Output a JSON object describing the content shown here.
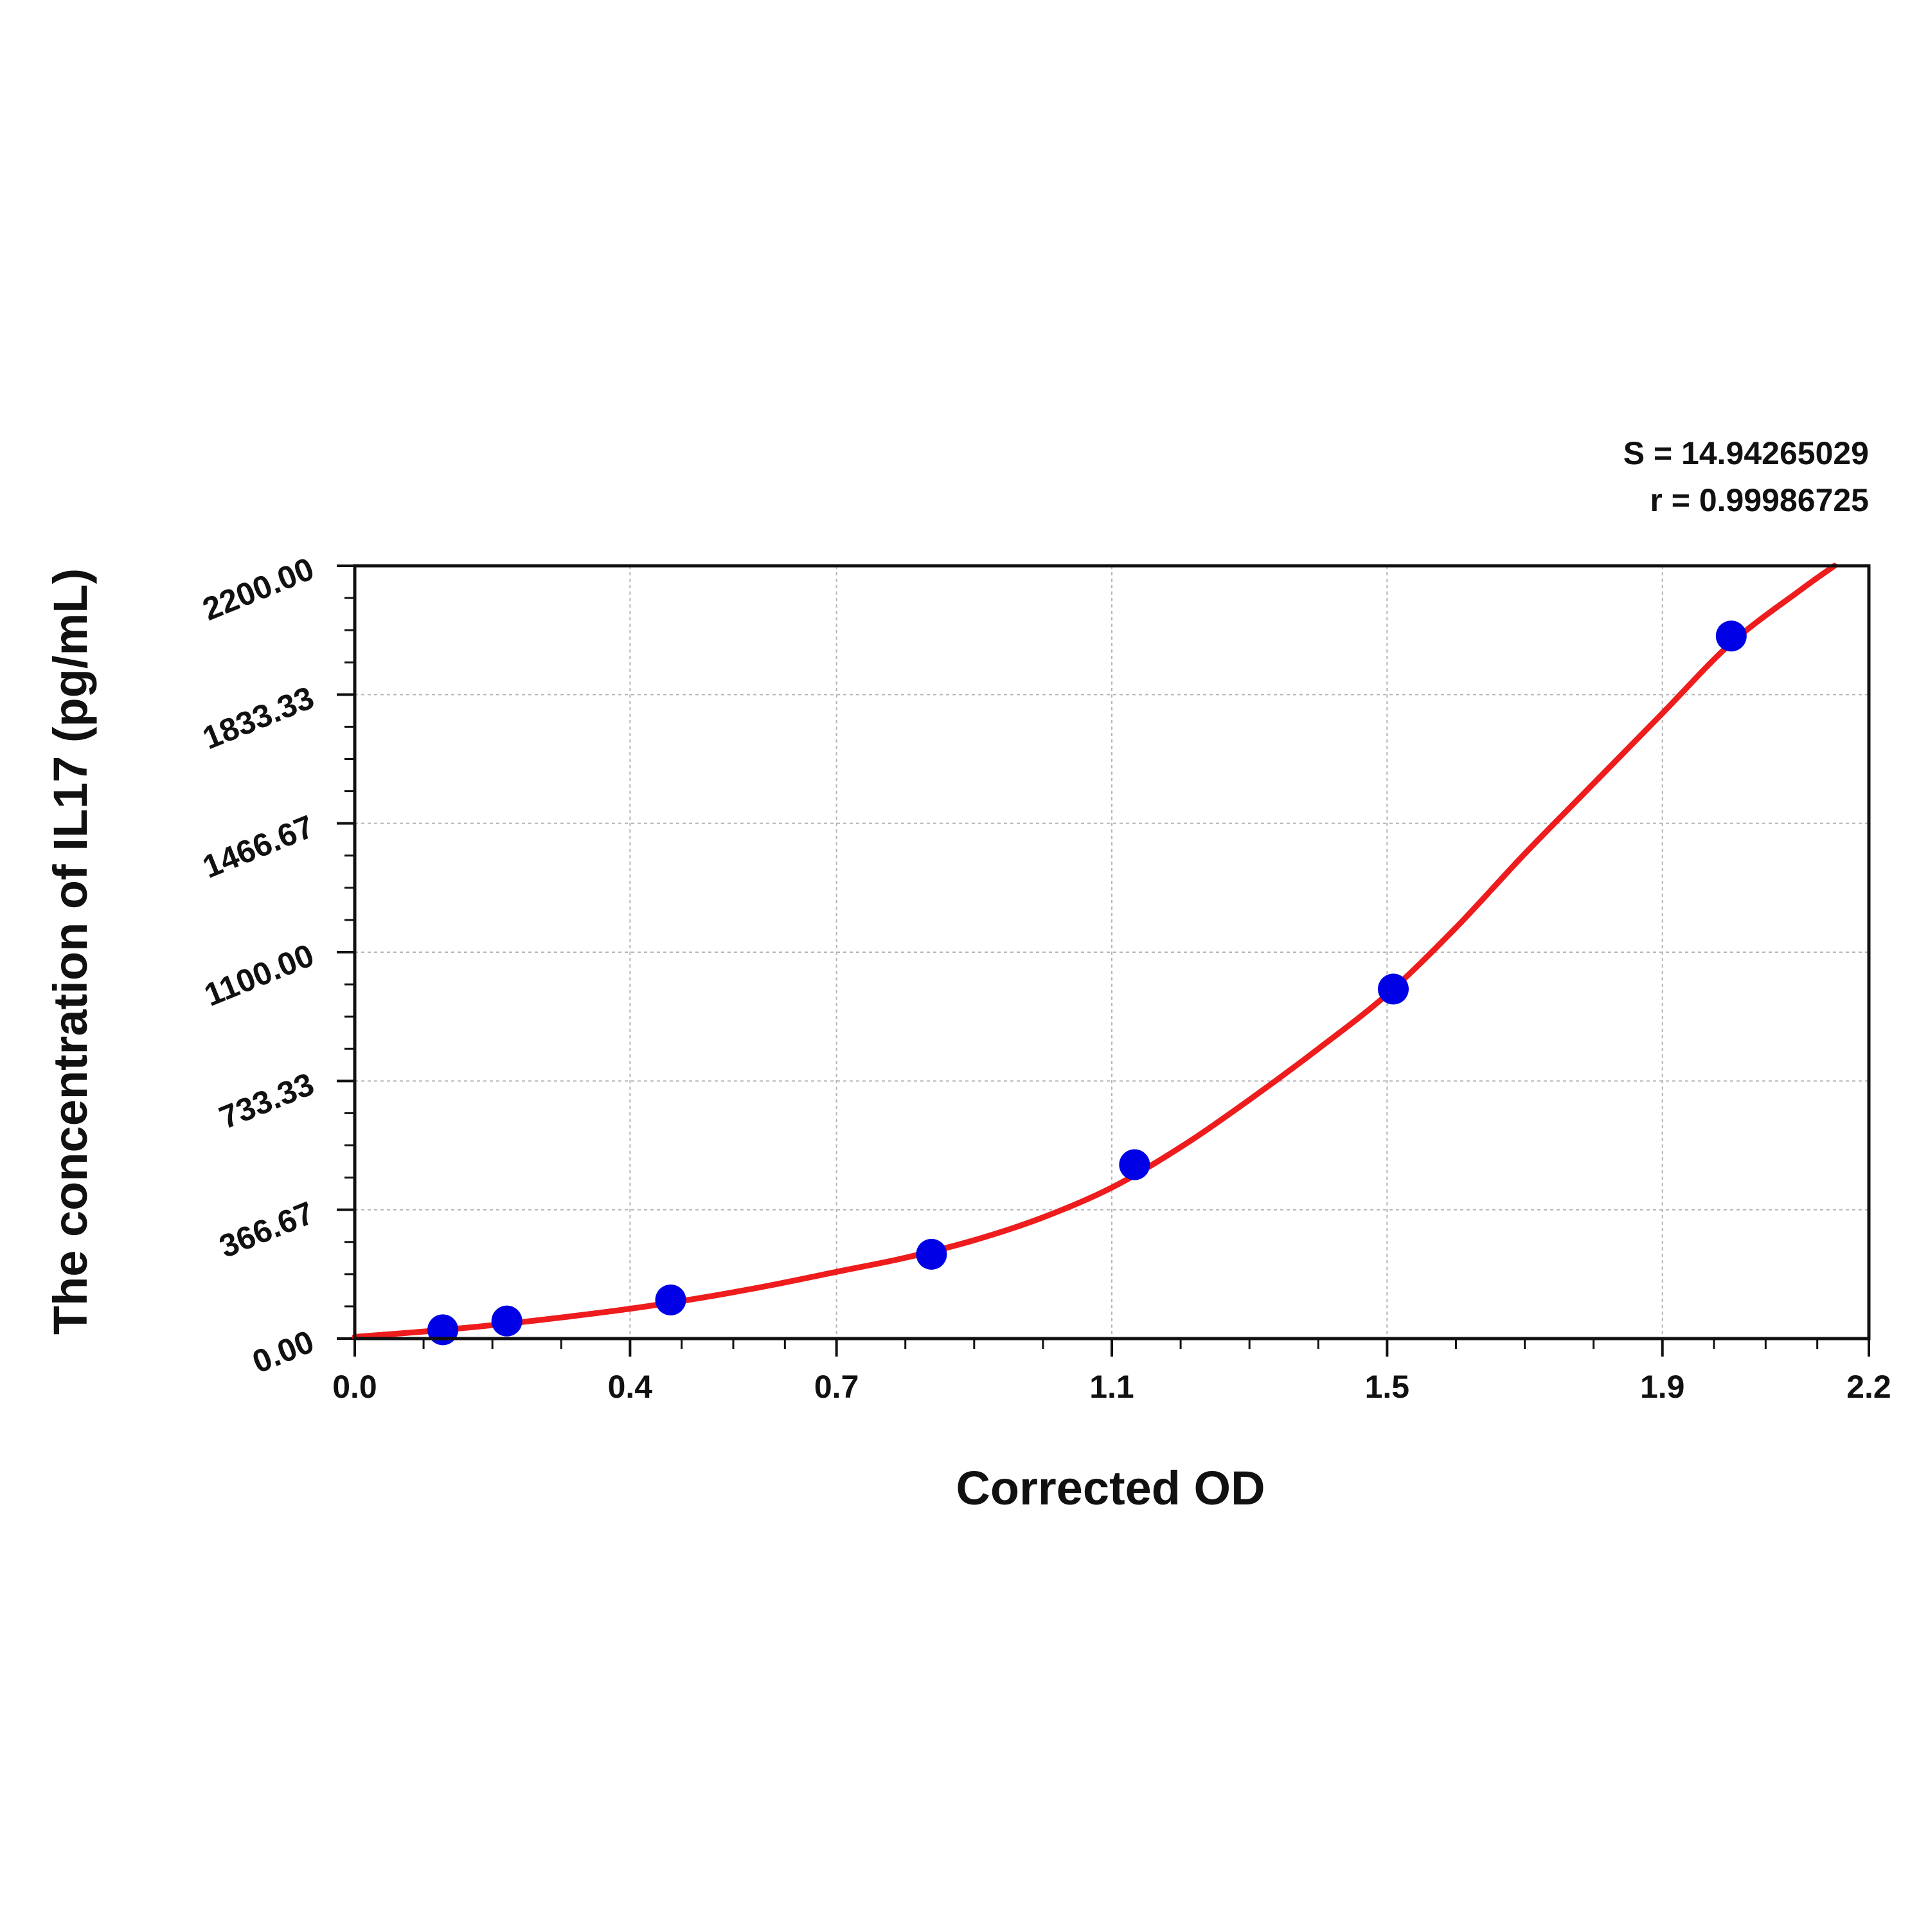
{
  "chart_data": {
    "type": "scatter",
    "xlabel": "Corrected OD",
    "ylabel": "The concentration of IL17 (pg/mL)",
    "annotations": [
      "S = 14.94265029",
      "r = 0.99986725"
    ],
    "xlim": [
      0.0,
      2.2
    ],
    "ylim": [
      0.0,
      2200.0
    ],
    "x_ticks": [
      0.0,
      0.4,
      0.7,
      1.1,
      1.5,
      1.9,
      2.2
    ],
    "x_tick_labels": [
      "0.0",
      "0.4",
      "0.7",
      "1.1",
      "1.5",
      "1.9",
      "2.2"
    ],
    "y_ticks": [
      0.0,
      366.67,
      733.33,
      1100.0,
      1466.67,
      1833.33,
      2200.0
    ],
    "y_tick_labels": [
      "0.00",
      "366.67",
      "733.33",
      "1100.00",
      "1466.67",
      "1833.33",
      "2200.00"
    ],
    "grid": true,
    "series": [
      {
        "kind": "points",
        "color": "#0000e6",
        "x": [
          0.128,
          0.221,
          0.459,
          0.838,
          1.133,
          1.509,
          2.0
        ],
        "y": [
          25.0,
          50.0,
          110.0,
          240.0,
          495.0,
          995.0,
          2000.0
        ]
      },
      {
        "kind": "fitted-curve",
        "color": "#ee1c1c",
        "x": [
          0.0,
          0.1,
          0.2,
          0.3,
          0.4,
          0.5,
          0.6,
          0.7,
          0.8,
          0.9,
          1.0,
          1.1,
          1.2,
          1.3,
          1.4,
          1.5,
          1.6,
          1.7,
          1.8,
          1.9,
          2.0,
          2.1,
          2.15
        ],
        "y": [
          5,
          20,
          38,
          60,
          85,
          115,
          150,
          190,
          230,
          280,
          345,
          430,
          545,
          680,
          825,
          980,
          1170,
          1380,
          1580,
          1780,
          1980,
          2130,
          2200
        ]
      }
    ]
  }
}
